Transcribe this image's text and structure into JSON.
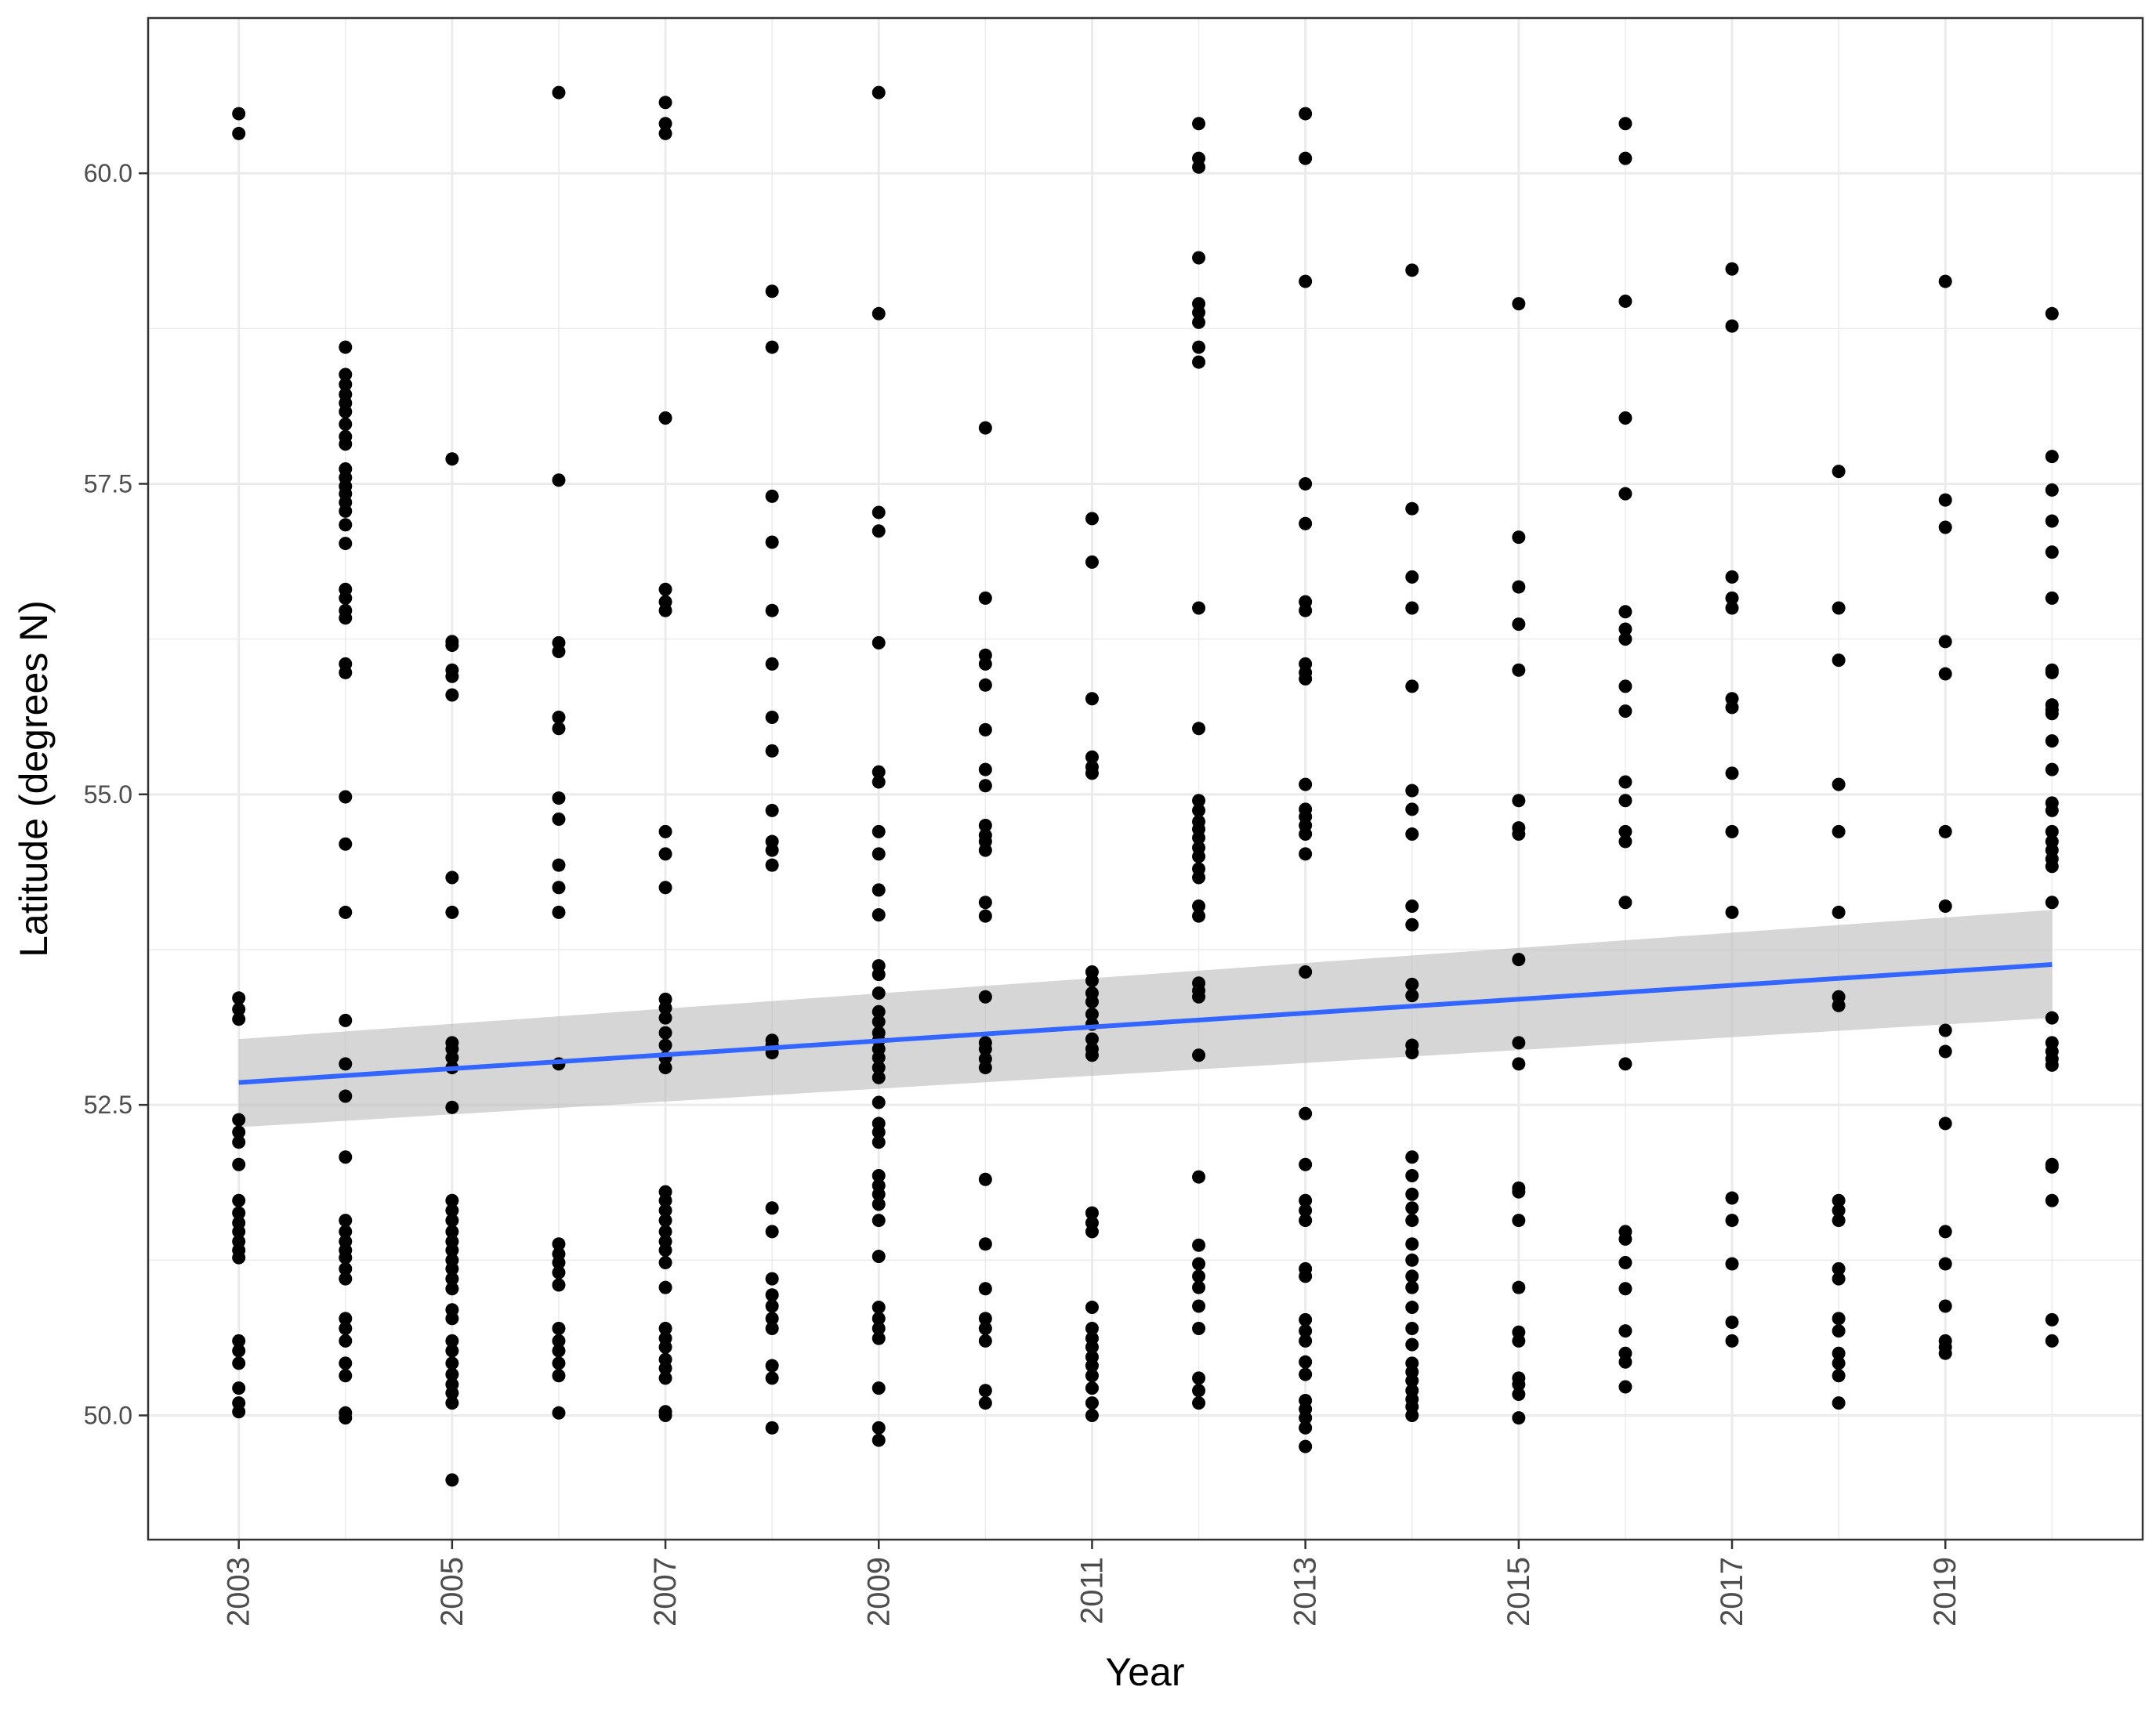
{
  "chart_data": {
    "type": "scatter",
    "xlabel": "Year",
    "ylabel": "Latitude (degrees N)",
    "xlim": [
      2002.15,
      2020.85
    ],
    "ylim": [
      49.0,
      61.25
    ],
    "x_ticks": [
      2003,
      2005,
      2007,
      2009,
      2011,
      2013,
      2015,
      2017,
      2019
    ],
    "x_ticks_minor": [
      2004,
      2006,
      2008,
      2010,
      2012,
      2014,
      2016,
      2018,
      2020
    ],
    "y_ticks": [
      50.0,
      52.5,
      55.0,
      57.5,
      60.0
    ],
    "y_tick_labels": [
      "50.0",
      "52.5",
      "55.0",
      "57.5",
      "60.0"
    ],
    "y_ticks_minor": [
      51.25,
      53.75,
      56.25,
      58.75
    ],
    "grid": true,
    "colors": {
      "points": "#000000",
      "trend_line": "#3366ff",
      "ribbon": "#bdbdbd",
      "grid": "#ebebeb",
      "panel_border": "#333333"
    },
    "trend": {
      "method": "linear",
      "x": [
        2003,
        2020
      ],
      "y": [
        52.68,
        53.63
      ],
      "ci_lower": [
        52.32,
        53.2
      ],
      "ci_upper": [
        53.03,
        54.07
      ]
    },
    "points": [
      {
        "x": 2003,
        "y": [
          60.48,
          60.32,
          53.36,
          53.27,
          53.19,
          52.38,
          52.28,
          52.2,
          52.02,
          51.73,
          51.63,
          51.55,
          51.48,
          51.4,
          51.33,
          51.27,
          50.6,
          50.52,
          50.42,
          50.22,
          50.1,
          50.03
        ]
      },
      {
        "x": 2004,
        "y": [
          58.6,
          58.38,
          58.3,
          58.22,
          58.15,
          58.08,
          57.98,
          57.88,
          57.82,
          57.62,
          57.55,
          57.48,
          57.42,
          57.35,
          57.28,
          57.17,
          57.02,
          56.65,
          56.58,
          56.48,
          56.42,
          56.05,
          55.98,
          54.98,
          54.6,
          54.05,
          53.18,
          52.83,
          52.57,
          52.08,
          51.57,
          51.48,
          51.4,
          51.33,
          51.27,
          51.18,
          51.1,
          50.78,
          50.7,
          50.6,
          50.42,
          50.32,
          50.02,
          49.98
        ]
      },
      {
        "x": 2005,
        "y": [
          57.7,
          56.23,
          56.2,
          56.0,
          55.95,
          55.8,
          54.33,
          54.05,
          53.0,
          52.95,
          52.88,
          52.8,
          52.48,
          51.73,
          51.65,
          51.57,
          51.48,
          51.4,
          51.33,
          51.25,
          51.18,
          51.1,
          51.02,
          50.85,
          50.78,
          50.6,
          50.52,
          50.42,
          50.33,
          50.25,
          50.18,
          50.1,
          49.48
        ]
      },
      {
        "x": 2006,
        "y": [
          60.65,
          57.53,
          56.22,
          56.15,
          55.62,
          55.53,
          54.97,
          54.8,
          54.43,
          54.25,
          54.05,
          52.83,
          51.38,
          51.3,
          51.23,
          51.15,
          51.05,
          50.7,
          50.6,
          50.52,
          50.42,
          50.32,
          50.02
        ]
      },
      {
        "x": 2007,
        "y": [
          60.57,
          60.4,
          60.32,
          58.03,
          56.65,
          56.55,
          56.48,
          54.7,
          54.52,
          54.25,
          53.35,
          53.28,
          53.2,
          53.08,
          52.98,
          52.88,
          52.8,
          51.8,
          51.73,
          51.65,
          51.57,
          51.48,
          51.4,
          51.33,
          51.23,
          51.03,
          50.7,
          50.62,
          50.55,
          50.45,
          50.38,
          50.3,
          50.03,
          50.0
        ]
      },
      {
        "x": 2008,
        "y": [
          59.05,
          58.6,
          57.4,
          57.03,
          56.48,
          56.05,
          55.62,
          55.35,
          54.87,
          54.62,
          54.55,
          54.43,
          53.02,
          52.98,
          52.92,
          51.67,
          51.48,
          51.1,
          50.97,
          50.88,
          50.78,
          50.7,
          50.4,
          50.3,
          49.9
        ]
      },
      {
        "x": 2009,
        "y": [
          60.65,
          58.87,
          57.27,
          57.12,
          56.22,
          55.18,
          55.1,
          54.7,
          54.52,
          54.23,
          54.03,
          53.62,
          53.55,
          53.4,
          53.25,
          53.17,
          53.08,
          53.02,
          52.95,
          52.88,
          52.8,
          52.72,
          52.52,
          52.35,
          52.28,
          52.2,
          51.93,
          51.85,
          51.78,
          51.7,
          51.57,
          51.28,
          50.87,
          50.78,
          50.7,
          50.62,
          50.22,
          49.9,
          49.8
        ]
      },
      {
        "x": 2010,
        "y": [
          57.95,
          56.58,
          56.12,
          56.05,
          55.88,
          55.52,
          55.2,
          55.07,
          54.75,
          54.67,
          54.62,
          54.55,
          54.13,
          54.02,
          53.37,
          53.0,
          52.95,
          52.87,
          52.8,
          51.9,
          51.38,
          51.02,
          50.78,
          50.7,
          50.6,
          50.2,
          50.1
        ]
      },
      {
        "x": 2011,
        "y": [
          57.22,
          56.87,
          55.77,
          55.3,
          55.22,
          55.17,
          53.57,
          53.5,
          53.4,
          53.33,
          53.23,
          53.15,
          53.03,
          52.95,
          52.9,
          51.63,
          51.55,
          51.48,
          50.87,
          50.7,
          50.62,
          50.55,
          50.47,
          50.4,
          50.32,
          50.22,
          50.1,
          50.0
        ]
      },
      {
        "x": 2012,
        "y": [
          60.4,
          60.12,
          60.05,
          59.32,
          58.95,
          58.88,
          58.8,
          58.6,
          58.48,
          56.5,
          55.53,
          54.95,
          54.87,
          54.78,
          54.72,
          54.65,
          54.57,
          54.5,
          54.4,
          54.33,
          54.1,
          54.02,
          53.48,
          53.42,
          53.37,
          52.9,
          51.92,
          51.37,
          51.22,
          51.12,
          51.03,
          50.88,
          50.7,
          50.3,
          50.2,
          50.1
        ]
      },
      {
        "x": 2013,
        "y": [
          60.48,
          60.12,
          59.13,
          57.5,
          57.18,
          56.55,
          56.48,
          56.05,
          55.98,
          55.93,
          55.08,
          54.88,
          54.82,
          54.75,
          54.68,
          54.52,
          53.57,
          52.43,
          52.02,
          51.73,
          51.65,
          51.57,
          51.18,
          51.12,
          50.77,
          50.68,
          50.6,
          50.43,
          50.33,
          50.12,
          50.05,
          49.98,
          49.9,
          49.75
        ]
      },
      {
        "x": 2014,
        "y": [
          59.22,
          57.3,
          56.75,
          56.5,
          55.87,
          55.03,
          54.88,
          54.68,
          54.1,
          53.95,
          53.47,
          53.38,
          52.98,
          52.92,
          52.08,
          51.93,
          51.78,
          51.67,
          51.57,
          51.38,
          51.25,
          51.12,
          51.03,
          50.87,
          50.7,
          50.57,
          50.42,
          50.35,
          50.28,
          50.2,
          50.13,
          50.07,
          50.0
        ]
      },
      {
        "x": 2015,
        "y": [
          58.95,
          57.07,
          56.67,
          56.37,
          56.0,
          54.95,
          54.73,
          54.68,
          53.67,
          53.0,
          52.83,
          51.83,
          51.8,
          51.57,
          51.03,
          50.67,
          50.6,
          50.3,
          50.25,
          50.17,
          49.98
        ]
      },
      {
        "x": 2016,
        "y": [
          60.4,
          60.12,
          58.97,
          58.03,
          57.42,
          56.47,
          56.33,
          56.25,
          55.87,
          55.67,
          55.1,
          54.95,
          54.7,
          54.62,
          54.13,
          52.83,
          51.48,
          51.42,
          51.23,
          51.02,
          50.68,
          50.5,
          50.43,
          50.23
        ]
      },
      {
        "x": 2017,
        "y": [
          59.23,
          58.77,
          56.75,
          56.58,
          56.5,
          55.77,
          55.7,
          55.17,
          54.7,
          54.05,
          51.75,
          51.57,
          51.22,
          50.75,
          50.6
        ]
      },
      {
        "x": 2018,
        "y": [
          57.6,
          56.5,
          56.08,
          55.08,
          54.7,
          54.05,
          53.37,
          53.3,
          51.73,
          51.65,
          51.57,
          51.18,
          51.1,
          50.78,
          50.68,
          50.5,
          50.42,
          50.32,
          50.1
        ]
      },
      {
        "x": 2019,
        "y": [
          59.13,
          57.37,
          57.15,
          56.23,
          55.97,
          54.7,
          54.1,
          53.1,
          52.93,
          52.35,
          51.48,
          51.22,
          50.88,
          50.6,
          50.55,
          50.5
        ]
      },
      {
        "x": 2020,
        "y": [
          58.87,
          57.72,
          57.45,
          57.2,
          56.95,
          56.58,
          56.0,
          55.98,
          55.72,
          55.68,
          55.65,
          55.43,
          55.2,
          54.93,
          54.87,
          54.7,
          54.62,
          54.55,
          54.48,
          54.42,
          54.13,
          53.2,
          53.0,
          52.93,
          52.87,
          52.82,
          52.02,
          52.0,
          51.73,
          50.77,
          50.6
        ]
      }
    ]
  }
}
